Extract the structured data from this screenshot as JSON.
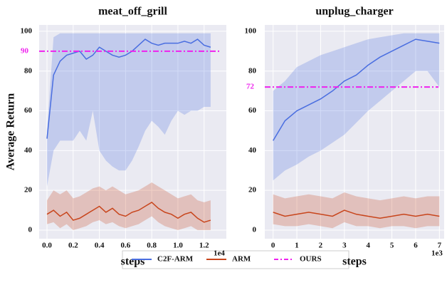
{
  "chart_data": [
    {
      "type": "line",
      "title": "meat_off_grill",
      "xlabel": "steps",
      "ylabel": "Average Return",
      "x_offset_label": "1e4",
      "x": [
        0,
        0.05,
        0.1,
        0.15,
        0.2,
        0.25,
        0.3,
        0.35,
        0.4,
        0.45,
        0.5,
        0.55,
        0.6,
        0.65,
        0.7,
        0.75,
        0.8,
        0.85,
        0.9,
        0.95,
        1.0,
        1.05,
        1.1,
        1.15,
        1.2,
        1.25
      ],
      "xlim": [
        -0.06,
        1.37
      ],
      "xticks": [
        {
          "value": 0,
          "label": "0.0"
        },
        {
          "value": 0.2,
          "label": "0.2"
        },
        {
          "value": 0.4,
          "label": "0.4"
        },
        {
          "value": 0.6,
          "label": "0.6"
        },
        {
          "value": 0.8,
          "label": "0.8"
        },
        {
          "value": 1.0,
          "label": "1.0"
        },
        {
          "value": 1.2,
          "label": "1.2"
        }
      ],
      "ylim": [
        -4.3,
        103.2
      ],
      "yticks": [
        0,
        20,
        40,
        60,
        80,
        100
      ],
      "grid": true,
      "series": [
        {
          "name": "C2F-ARM",
          "color": "#4a6ee0",
          "values": [
            46,
            78,
            85,
            88,
            89,
            90,
            86,
            88,
            92,
            90,
            88,
            87,
            88,
            90,
            93,
            96,
            94,
            93,
            94,
            94,
            94,
            95,
            94,
            96,
            93,
            92
          ],
          "upper": [
            50,
            97,
            99,
            99,
            99,
            99,
            99,
            99,
            99,
            99,
            99,
            99,
            99,
            99,
            99,
            99,
            99,
            99,
            99,
            99,
            99,
            99,
            99,
            99,
            99,
            99
          ],
          "lower": [
            22,
            40,
            45,
            45,
            45,
            50,
            45,
            60,
            40,
            35,
            32,
            30,
            30,
            35,
            42,
            50,
            55,
            52,
            48,
            55,
            60,
            58,
            60,
            60,
            62,
            62
          ]
        },
        {
          "name": "ARM",
          "color": "#c8451c",
          "values": [
            8,
            10,
            7,
            9,
            5,
            6,
            8,
            10,
            12,
            9,
            11,
            8,
            7,
            9,
            10,
            12,
            14,
            11,
            9,
            8,
            6,
            8,
            9,
            6,
            4,
            5
          ],
          "upper": [
            15,
            20,
            18,
            20,
            16,
            17,
            19,
            21,
            22,
            20,
            22,
            20,
            18,
            19,
            20,
            22,
            24,
            22,
            20,
            18,
            16,
            17,
            18,
            15,
            14,
            15
          ],
          "lower": [
            3,
            4,
            1,
            3,
            0,
            1,
            2,
            4,
            5,
            3,
            4,
            2,
            1,
            2,
            3,
            5,
            7,
            4,
            2,
            1,
            0,
            1,
            2,
            0,
            0,
            0
          ]
        }
      ],
      "hline": {
        "name": "OURS",
        "value": 90,
        "color": "#ee22ee"
      }
    },
    {
      "type": "line",
      "title": "unplug_charger",
      "xlabel": "steps",
      "x_offset_label": "1e3",
      "x": [
        0,
        0.5,
        1,
        1.5,
        2,
        2.5,
        3,
        3.5,
        4,
        4.5,
        5,
        5.5,
        6,
        6.5,
        7
      ],
      "xlim": [
        -0.35,
        7.2
      ],
      "xticks": [
        0,
        1,
        2,
        3,
        4,
        5,
        6,
        7
      ],
      "ylim": [
        -4.3,
        103.2
      ],
      "yticks": [
        0,
        20,
        40,
        60,
        80,
        100
      ],
      "grid": true,
      "series": [
        {
          "name": "C2F-ARM",
          "color": "#4a6ee0",
          "values": [
            45,
            55,
            60,
            63,
            66,
            70,
            75,
            78,
            83,
            87,
            90,
            93,
            96,
            95,
            94
          ],
          "upper": [
            70,
            75,
            82,
            85,
            88,
            90,
            92,
            94,
            96,
            97,
            98,
            99,
            99,
            99,
            99
          ],
          "lower": [
            25,
            30,
            33,
            37,
            40,
            44,
            48,
            54,
            60,
            65,
            70,
            75,
            80,
            80,
            72
          ]
        },
        {
          "name": "ARM",
          "color": "#c8451c",
          "values": [
            9,
            7,
            8,
            9,
            8,
            7,
            10,
            8,
            7,
            6,
            7,
            8,
            7,
            8,
            7
          ],
          "upper": [
            18,
            16,
            17,
            18,
            17,
            16,
            19,
            17,
            16,
            15,
            16,
            17,
            16,
            17,
            17
          ],
          "lower": [
            3,
            2,
            2,
            3,
            2,
            1,
            4,
            2,
            2,
            1,
            2,
            2,
            1,
            2,
            2
          ]
        }
      ],
      "hline": {
        "value": 72,
        "color": "#ee22ee"
      }
    }
  ]
}
